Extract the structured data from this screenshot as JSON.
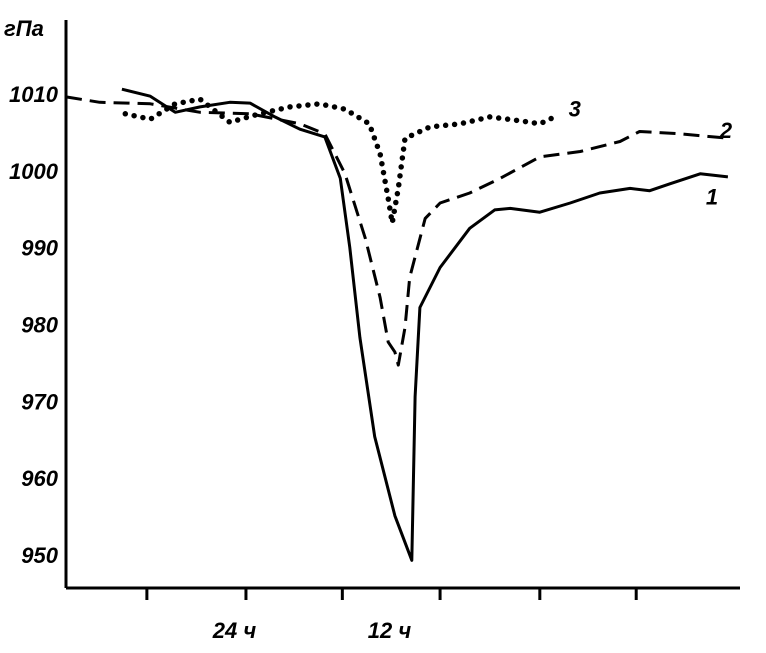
{
  "chart_data": {
    "type": "line",
    "ylabel": "гПа",
    "ylim": [
      946,
      1019
    ],
    "yticks": [
      950,
      960,
      970,
      980,
      990,
      1000,
      1010
    ],
    "xlim": [
      0,
      100
    ],
    "xticks": [
      12,
      26.7,
      41,
      55.5,
      70.3,
      84.6
    ],
    "xlabels": [
      {
        "value": 25,
        "label": "24 ч"
      },
      {
        "value": 48,
        "label": "12 ч"
      }
    ],
    "color": "#000000",
    "series": [
      {
        "name": "1",
        "style": "solid",
        "x": [
          8.3,
          12.5,
          16.2,
          19.9,
          24.3,
          27.3,
          31,
          34.7,
          38.4,
          40.7,
          42.1,
          43.6,
          45.8,
          48.8,
          51.3,
          51.8,
          52.5,
          55.5,
          59.9,
          63.6,
          65.9,
          70.3,
          74.8,
          79.2,
          83.7,
          86.6,
          89.6,
          94.1,
          98.2
        ],
        "values": [
          1010.9,
          1010,
          1007.9,
          1008.6,
          1009.2,
          1009.1,
          1007.3,
          1005.7,
          1004.7,
          999.3,
          990.3,
          978.6,
          965.7,
          955.4,
          949.6,
          970.9,
          982.5,
          987.7,
          992.8,
          995.2,
          995.4,
          994.9,
          996.1,
          997.4,
          998,
          997.7,
          998.6,
          999.9,
          999.5
        ]
      },
      {
        "name": "2",
        "style": "dashed",
        "x": [
          0,
          5,
          12.5,
          19.9,
          27.3,
          34.7,
          38.4,
          41.4,
          44.4,
          46.6,
          47.8,
          48.8,
          49.3,
          50.3,
          51,
          53.3,
          55.5,
          59.9,
          64.4,
          70.3,
          76.3,
          82.2,
          85.1,
          91.1,
          98.5
        ],
        "values": [
          1009.9,
          1009.2,
          1009,
          1007.9,
          1007.7,
          1006.4,
          1005.1,
          999.9,
          991.5,
          983.8,
          978,
          976.7,
          975,
          979.9,
          986.4,
          994.1,
          996.1,
          997.4,
          999.3,
          1002.1,
          1002.8,
          1004.1,
          1005.4,
          1005.1,
          1004.5
        ]
      },
      {
        "name": "3",
        "style": "dotted",
        "x": [
          8.8,
          12.5,
          16.2,
          19.9,
          24.3,
          28.7,
          33.2,
          37.6,
          41.4,
          45,
          46.6,
          47.8,
          48.4,
          49.3,
          50.3,
          54,
          58.5,
          62.9,
          67.4,
          70.3,
          72.5
        ],
        "values": [
          1007.7,
          1007,
          1009,
          1009.6,
          1006.6,
          1007.7,
          1008.6,
          1009,
          1008.3,
          1006.4,
          1002.5,
          996.7,
          993.5,
          998,
          1004.5,
          1006,
          1006.4,
          1007.3,
          1006.8,
          1006.4,
          1007.3
        ]
      }
    ]
  }
}
